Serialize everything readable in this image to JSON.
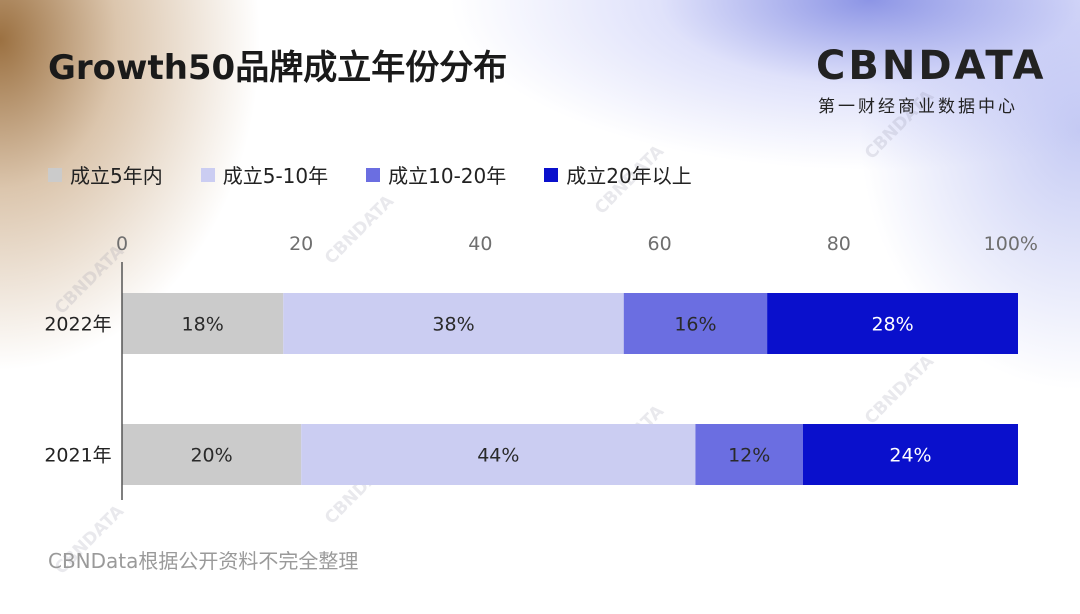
{
  "title": "Growth50品牌成立年份分布",
  "logo": {
    "wordmark": "CBNDATA",
    "subtitle": "第一财经商业数据中心"
  },
  "watermark_text": "CBNDATA",
  "source": "CBNData根据公开资料不完全整理",
  "colors": {
    "within_5": "#cbcbcb",
    "y5_10": "#cbcdf2",
    "y10_20": "#6b6ee1",
    "over_20": "#0a10cc"
  },
  "chart_data": {
    "type": "bar",
    "orientation": "horizontal",
    "stacked": true,
    "title": "Growth50品牌成立年份分布",
    "categories": [
      "2022年",
      "2021年"
    ],
    "series": [
      {
        "name": "成立5年内",
        "values": [
          18,
          20
        ],
        "labels": [
          "18%",
          "20%"
        ],
        "color": "#cbcbcb",
        "label_color": "#2a2a2a"
      },
      {
        "name": "成立5-10年",
        "values": [
          38,
          44
        ],
        "labels": [
          "38%",
          "44%"
        ],
        "color": "#cbcdf2",
        "label_color": "#2a2a2a"
      },
      {
        "name": "成立10-20年",
        "values": [
          16,
          12
        ],
        "labels": [
          "16%",
          "12%"
        ],
        "color": "#6b6ee1",
        "label_color": "#2a2a2a"
      },
      {
        "name": "成立20年以上",
        "values": [
          28,
          24
        ],
        "labels": [
          "28%",
          "24%"
        ],
        "color": "#0a10cc",
        "label_color": "#ffffff"
      }
    ],
    "x_ticks": [
      0,
      20,
      40,
      60,
      80,
      100
    ],
    "x_tick_labels": [
      "0",
      "20",
      "40",
      "60",
      "80",
      "100%"
    ],
    "xlim": [
      0,
      100
    ],
    "legend_position": "top-left",
    "grid": false
  }
}
